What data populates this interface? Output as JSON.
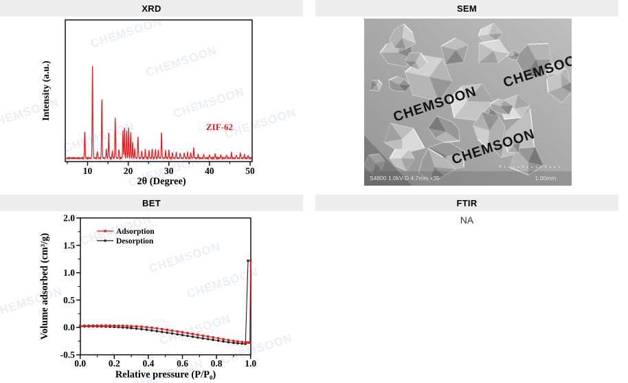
{
  "watermark": {
    "text": "CHEMSOON",
    "color": "#e9eef7"
  },
  "colors": {
    "header_bg": "#ededed",
    "accent_red": "#e8191d",
    "series_black": "#1a1a1a"
  },
  "panels": {
    "xrd": {
      "title": "XRD"
    },
    "sem": {
      "title": "SEM"
    },
    "bet": {
      "title": "BET"
    },
    "ftir": {
      "title": "FTIR",
      "content": "NA"
    }
  },
  "sem": {
    "info_left": "S4800 1.0kV-D 4.7mm x35",
    "scale_label": "1.00mm"
  },
  "chart_data": [
    {
      "id": "xrd",
      "type": "line",
      "title": "XRD pattern",
      "sample_label": "ZIF-62",
      "xlabel": "2θ (Degree)",
      "ylabel": "Intensity (a.u.)",
      "xlim": [
        4.5,
        50.5
      ],
      "x_ticks": [
        10,
        20,
        30,
        40,
        50
      ],
      "x_minor_ticks": [
        5,
        15,
        25,
        35,
        45
      ],
      "y_ticks": [],
      "grid": false,
      "line_color": "#e8191d",
      "peaks_2theta_relintensity": [
        [
          9.3,
          0.3
        ],
        [
          11.2,
          1.0
        ],
        [
          12.4,
          0.08
        ],
        [
          13.5,
          0.67
        ],
        [
          14.6,
          0.1
        ],
        [
          15.2,
          0.27
        ],
        [
          16.1,
          0.08
        ],
        [
          16.8,
          0.44
        ],
        [
          17.7,
          0.1
        ],
        [
          18.7,
          0.3
        ],
        [
          19.1,
          0.34
        ],
        [
          19.6,
          0.3
        ],
        [
          20.1,
          0.33
        ],
        [
          20.6,
          0.28
        ],
        [
          21.1,
          0.18
        ],
        [
          21.6,
          0.1
        ],
        [
          22.4,
          0.24
        ],
        [
          23.3,
          0.08
        ],
        [
          24.2,
          0.1
        ],
        [
          25.1,
          0.09
        ],
        [
          25.9,
          0.11
        ],
        [
          26.7,
          0.1
        ],
        [
          27.4,
          0.08
        ],
        [
          28.2,
          0.29
        ],
        [
          29.2,
          0.08
        ],
        [
          30.0,
          0.09
        ],
        [
          30.9,
          0.06
        ],
        [
          31.8,
          0.07
        ],
        [
          32.8,
          0.06
        ],
        [
          33.8,
          0.06
        ],
        [
          34.6,
          0.07
        ],
        [
          35.4,
          0.06
        ],
        [
          36.1,
          0.11
        ],
        [
          37.2,
          0.04
        ],
        [
          38.6,
          0.04
        ],
        [
          40.0,
          0.04
        ],
        [
          41.4,
          0.05
        ],
        [
          42.8,
          0.04
        ],
        [
          44.2,
          0.04
        ],
        [
          45.4,
          0.06
        ],
        [
          46.6,
          0.04
        ],
        [
          47.6,
          0.06
        ],
        [
          48.6,
          0.04
        ],
        [
          49.5,
          0.03
        ]
      ]
    },
    {
      "id": "bet",
      "type": "line",
      "title": "N2 sorption isotherm",
      "xlabel": "Relative pressure (P/P₀)",
      "ylabel": "Volume adsorbed (cm³/g)",
      "xlim": [
        0.0,
        1.0
      ],
      "ylim": [
        -0.5,
        2.0
      ],
      "x_ticks": [
        0.0,
        0.2,
        0.4,
        0.6,
        0.8,
        1.0
      ],
      "y_ticks": [
        2.0,
        1.5,
        1.0,
        0.5,
        0.0,
        -0.5
      ],
      "x_minor_step": 0.1,
      "y_minor_step": 0.25,
      "grid": false,
      "legend_position": "top-left",
      "series": [
        {
          "name": "Desorption",
          "color": "#1a1a1a",
          "marker": "circle",
          "points": [
            [
              0.0,
              0.018
            ],
            [
              0.025,
              0.018
            ],
            [
              0.05,
              0.018
            ],
            [
              0.075,
              0.018
            ],
            [
              0.1,
              0.017
            ],
            [
              0.125,
              0.016
            ],
            [
              0.15,
              0.014
            ],
            [
              0.175,
              0.012
            ],
            [
              0.2,
              0.009
            ],
            [
              0.225,
              0.005
            ],
            [
              0.25,
              0.0
            ],
            [
              0.275,
              -0.006
            ],
            [
              0.3,
              -0.013
            ],
            [
              0.33,
              -0.022
            ],
            [
              0.36,
              -0.032
            ],
            [
              0.39,
              -0.043
            ],
            [
              0.42,
              -0.055
            ],
            [
              0.45,
              -0.068
            ],
            [
              0.48,
              -0.082
            ],
            [
              0.51,
              -0.096
            ],
            [
              0.54,
              -0.11
            ],
            [
              0.57,
              -0.125
            ],
            [
              0.6,
              -0.14
            ],
            [
              0.63,
              -0.155
            ],
            [
              0.66,
              -0.17
            ],
            [
              0.69,
              -0.185
            ],
            [
              0.72,
              -0.2
            ],
            [
              0.75,
              -0.214
            ],
            [
              0.78,
              -0.228
            ],
            [
              0.81,
              -0.242
            ],
            [
              0.84,
              -0.256
            ],
            [
              0.87,
              -0.27
            ],
            [
              0.9,
              -0.283
            ],
            [
              0.925,
              -0.29
            ],
            [
              0.95,
              -0.296
            ],
            [
              0.97,
              -0.3
            ],
            [
              0.985,
              1.22
            ]
          ]
        },
        {
          "name": "Adsorption",
          "color": "#e8191d",
          "marker": "square",
          "points": [
            [
              0.0,
              0.03
            ],
            [
              0.025,
              0.032
            ],
            [
              0.05,
              0.033
            ],
            [
              0.075,
              0.034
            ],
            [
              0.1,
              0.035
            ],
            [
              0.125,
              0.036
            ],
            [
              0.15,
              0.036
            ],
            [
              0.175,
              0.035
            ],
            [
              0.2,
              0.034
            ],
            [
              0.225,
              0.032
            ],
            [
              0.25,
              0.03
            ],
            [
              0.275,
              0.027
            ],
            [
              0.3,
              0.024
            ],
            [
              0.33,
              0.02
            ],
            [
              0.36,
              0.013
            ],
            [
              0.39,
              0.005
            ],
            [
              0.42,
              -0.005
            ],
            [
              0.45,
              -0.017
            ],
            [
              0.48,
              -0.03
            ],
            [
              0.51,
              -0.044
            ],
            [
              0.54,
              -0.058
            ],
            [
              0.57,
              -0.073
            ],
            [
              0.6,
              -0.088
            ],
            [
              0.63,
              -0.103
            ],
            [
              0.66,
              -0.118
            ],
            [
              0.69,
              -0.134
            ],
            [
              0.72,
              -0.15
            ],
            [
              0.75,
              -0.165
            ],
            [
              0.78,
              -0.182
            ],
            [
              0.81,
              -0.198
            ],
            [
              0.84,
              -0.214
            ],
            [
              0.87,
              -0.23
            ],
            [
              0.9,
              -0.246
            ],
            [
              0.925,
              -0.256
            ],
            [
              0.95,
              -0.266
            ],
            [
              0.97,
              -0.272
            ],
            [
              0.985,
              -0.276
            ],
            [
              0.995,
              -0.278
            ],
            [
              1.0,
              1.22
            ]
          ]
        }
      ],
      "legend": [
        "Adsorption",
        "Desorption"
      ]
    }
  ]
}
